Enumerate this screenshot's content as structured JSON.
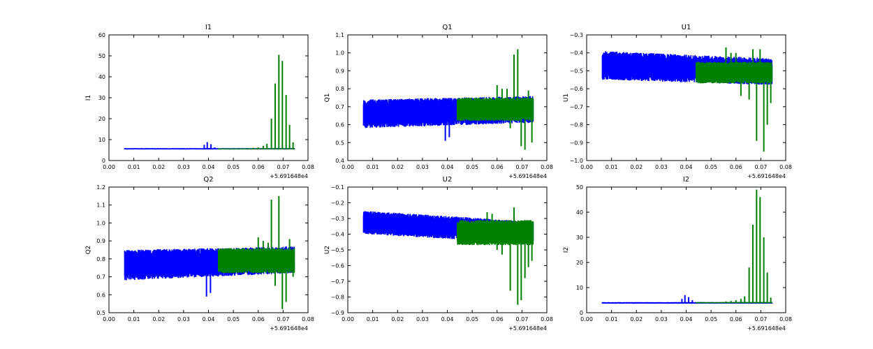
{
  "chart_data": [
    {
      "type": "line",
      "title": "I1",
      "ylabel": "I1",
      "xlim": [
        0.0,
        0.08
      ],
      "ylim": [
        0,
        60
      ],
      "xticks": [
        "0.00",
        "0.01",
        "0.02",
        "0.03",
        "0.04",
        "0.05",
        "0.06",
        "0.07",
        "0.08"
      ],
      "yticks": [
        "0",
        "10",
        "20",
        "30",
        "40",
        "50",
        "60"
      ],
      "x_offset_label": "+5.691648e4",
      "series": [
        {
          "color": "#0000ff",
          "x_range": [
            0.0063,
            0.0745
          ],
          "band": [
            5.3,
            5.9
          ],
          "spikes": [
            [
              0.0383,
              7.5
            ],
            [
              0.0395,
              8.8
            ],
            [
              0.041,
              7.8
            ],
            [
              0.0425,
              6.3
            ]
          ]
        },
        {
          "color": "#008000",
          "x_range": [
            0.044,
            0.0745
          ],
          "band": [
            5.4,
            5.7
          ],
          "spikes": [
            [
              0.056,
              5.9
            ],
            [
              0.058,
              6.1
            ],
            [
              0.06,
              6.3
            ],
            [
              0.062,
              7.0
            ],
            [
              0.0635,
              8.0
            ],
            [
              0.0653,
              20.0
            ],
            [
              0.0668,
              36.8
            ],
            [
              0.0683,
              50.5
            ],
            [
              0.0697,
              47.6
            ],
            [
              0.0712,
              31.3
            ],
            [
              0.0726,
              17.0
            ],
            [
              0.074,
              8.7
            ]
          ]
        }
      ]
    },
    {
      "type": "line",
      "title": "Q1",
      "ylabel": "Q1",
      "xlim": [
        0.0,
        0.08
      ],
      "ylim": [
        0.4,
        1.1
      ],
      "xticks": [
        "0.00",
        "0.01",
        "0.02",
        "0.03",
        "0.04",
        "0.05",
        "0.06",
        "0.07",
        "0.08"
      ],
      "yticks": [
        "0.4",
        "0.5",
        "0.6",
        "0.7",
        "0.8",
        "0.9",
        "1.0",
        "1.1"
      ],
      "x_offset_label": "+5.691648e4",
      "series": [
        {
          "color": "#0000ff",
          "x_range": [
            0.0063,
            0.0745
          ],
          "band_start": [
            0.58,
            0.74
          ],
          "band_end": [
            0.61,
            0.76
          ],
          "spikes": [
            [
              0.0392,
              0.51
            ],
            [
              0.0408,
              0.53
            ]
          ]
        },
        {
          "color": "#008000",
          "x_range": [
            0.044,
            0.0745
          ],
          "band": [
            0.62,
            0.75
          ],
          "spikes": [
            [
              0.06,
              0.82
            ],
            [
              0.062,
              0.8
            ],
            [
              0.064,
              0.8
            ],
            [
              0.0653,
              0.58
            ],
            [
              0.0668,
              0.99
            ],
            [
              0.0683,
              1.02
            ],
            [
              0.0697,
              0.48
            ],
            [
              0.0712,
              0.46
            ],
            [
              0.0726,
              0.79
            ],
            [
              0.074,
              0.5
            ]
          ]
        }
      ]
    },
    {
      "type": "line",
      "title": "U1",
      "ylabel": "U1",
      "xlim": [
        0.0,
        0.08
      ],
      "ylim": [
        -1.0,
        -0.3
      ],
      "xticks": [
        "0.00",
        "0.01",
        "0.02",
        "0.03",
        "0.04",
        "0.05",
        "0.06",
        "0.07",
        "0.08"
      ],
      "yticks": [
        "−1.0",
        "−0.9",
        "−0.8",
        "−0.7",
        "−0.6",
        "−0.5",
        "−0.4",
        "−0.3"
      ],
      "x_offset_label": "+5.691648e4",
      "series": [
        {
          "color": "#0000ff",
          "x_range": [
            0.0063,
            0.0745
          ],
          "band_start": [
            -0.55,
            -0.39
          ],
          "band_end": [
            -0.58,
            -0.43
          ]
        },
        {
          "color": "#008000",
          "x_range": [
            0.044,
            0.0745
          ],
          "band": [
            -0.57,
            -0.45
          ],
          "spikes": [
            [
              0.056,
              -0.37
            ],
            [
              0.058,
              -0.4
            ],
            [
              0.06,
              -0.4
            ],
            [
              0.062,
              -0.64
            ],
            [
              0.0653,
              -0.66
            ],
            [
              0.0668,
              -0.38
            ],
            [
              0.0683,
              -0.89
            ],
            [
              0.0697,
              -0.38
            ],
            [
              0.0712,
              -0.95
            ],
            [
              0.0726,
              -0.8
            ],
            [
              0.074,
              -0.68
            ]
          ]
        }
      ]
    },
    {
      "type": "line",
      "title": "Q2",
      "ylabel": "Q2",
      "xlim": [
        0.0,
        0.08
      ],
      "ylim": [
        0.5,
        1.2
      ],
      "xticks": [
        "0.00",
        "0.01",
        "0.02",
        "0.03",
        "0.04",
        "0.05",
        "0.06",
        "0.07",
        "0.08"
      ],
      "yticks": [
        "0.5",
        "0.6",
        "0.7",
        "0.8",
        "0.9",
        "1.0",
        "1.1",
        "1.2"
      ],
      "x_offset_label": "+5.691648e4",
      "series": [
        {
          "color": "#0000ff",
          "x_range": [
            0.0063,
            0.0745
          ],
          "band_start": [
            0.68,
            0.85
          ],
          "band_end": [
            0.72,
            0.87
          ],
          "spikes": [
            [
              0.0392,
              0.59
            ],
            [
              0.0408,
              0.61
            ]
          ]
        },
        {
          "color": "#008000",
          "x_range": [
            0.044,
            0.0745
          ],
          "band": [
            0.72,
            0.86
          ],
          "spikes": [
            [
              0.06,
              0.92
            ],
            [
              0.062,
              0.9
            ],
            [
              0.064,
              0.89
            ],
            [
              0.0653,
              1.13
            ],
            [
              0.0668,
              0.65
            ],
            [
              0.0683,
              1.15
            ],
            [
              0.0697,
              0.52
            ],
            [
              0.0712,
              0.56
            ],
            [
              0.0726,
              0.91
            ],
            [
              0.074,
              0.7
            ]
          ]
        }
      ]
    },
    {
      "type": "line",
      "title": "U2",
      "ylabel": "U2",
      "xlim": [
        0.0,
        0.08
      ],
      "ylim": [
        -0.9,
        -0.1
      ],
      "xticks": [
        "0.00",
        "0.01",
        "0.02",
        "0.03",
        "0.04",
        "0.05",
        "0.06",
        "0.07",
        "0.08"
      ],
      "yticks": [
        "−0.9",
        "−0.8",
        "−0.7",
        "−0.6",
        "−0.5",
        "−0.4",
        "−0.3",
        "−0.2",
        "−0.1"
      ],
      "x_offset_label": "+5.691648e4",
      "series": [
        {
          "color": "#0000ff",
          "x_range": [
            0.0063,
            0.0745
          ],
          "band_start": [
            -0.4,
            -0.25
          ],
          "band_end": [
            -0.46,
            -0.32
          ]
        },
        {
          "color": "#008000",
          "x_range": [
            0.044,
            0.0745
          ],
          "band": [
            -0.47,
            -0.31
          ],
          "spikes": [
            [
              0.056,
              -0.26
            ],
            [
              0.058,
              -0.27
            ],
            [
              0.06,
              -0.5
            ],
            [
              0.062,
              -0.53
            ],
            [
              0.0653,
              -0.76
            ],
            [
              0.0668,
              -0.23
            ],
            [
              0.0683,
              -0.85
            ],
            [
              0.0697,
              -0.82
            ],
            [
              0.0712,
              -0.68
            ],
            [
              0.0726,
              -0.61
            ],
            [
              0.074,
              -0.57
            ]
          ]
        }
      ]
    },
    {
      "type": "line",
      "title": "I2",
      "ylabel": "I2",
      "xlim": [
        0.0,
        0.08
      ],
      "ylim": [
        0,
        50
      ],
      "xticks": [
        "0.00",
        "0.01",
        "0.02",
        "0.03",
        "0.04",
        "0.05",
        "0.06",
        "0.07",
        "0.08"
      ],
      "yticks": [
        "0",
        "10",
        "20",
        "30",
        "40",
        "50"
      ],
      "x_offset_label": "+5.691648e4",
      "series": [
        {
          "color": "#0000ff",
          "x_range": [
            0.0063,
            0.0745
          ],
          "band": [
            3.6,
            4.2
          ],
          "spikes": [
            [
              0.0383,
              5.5
            ],
            [
              0.0395,
              7.0
            ],
            [
              0.041,
              6.2
            ],
            [
              0.0425,
              5.0
            ]
          ]
        },
        {
          "color": "#008000",
          "x_range": [
            0.044,
            0.0745
          ],
          "band": [
            3.8,
            4.2
          ],
          "spikes": [
            [
              0.056,
              4.5
            ],
            [
              0.058,
              4.7
            ],
            [
              0.06,
              5.0
            ],
            [
              0.062,
              5.5
            ],
            [
              0.0635,
              6.5
            ],
            [
              0.0653,
              18.0
            ],
            [
              0.0668,
              35.0
            ],
            [
              0.0683,
              49.0
            ],
            [
              0.0697,
              46.0
            ],
            [
              0.0712,
              30.0
            ],
            [
              0.0726,
              16.0
            ],
            [
              0.074,
              6.0
            ]
          ]
        }
      ]
    }
  ]
}
